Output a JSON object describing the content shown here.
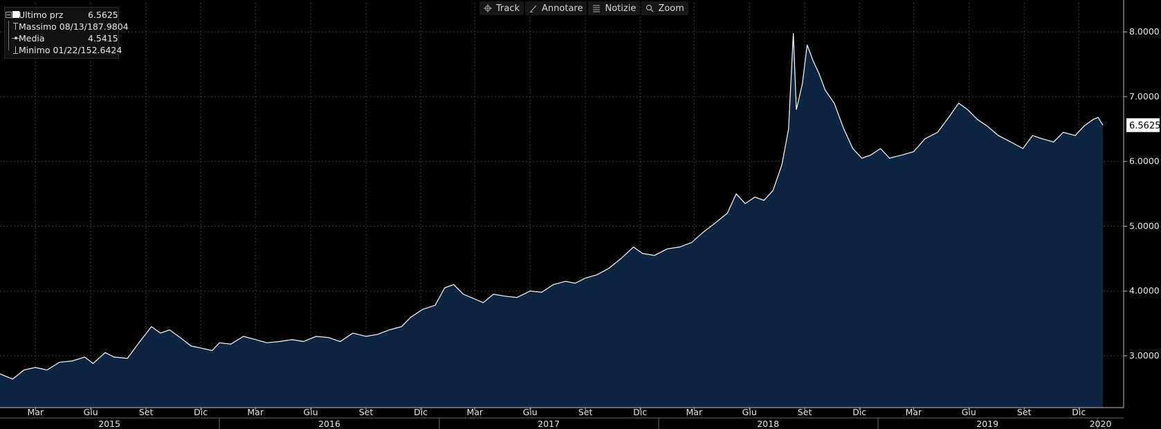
{
  "toolbar": {
    "buttons": [
      {
        "label": "Track",
        "icon": "crosshair-icon"
      },
      {
        "label": "Annotare",
        "icon": "pencil-icon"
      },
      {
        "label": "Notizie",
        "icon": "news-icon"
      },
      {
        "label": "Zoom",
        "icon": "magnifier-icon"
      }
    ]
  },
  "legend": {
    "items": [
      {
        "name": "Ultimo prz",
        "value": "6.5625"
      },
      {
        "name": "Massimo 08/13/18",
        "value": "7.9804"
      },
      {
        "name": "Media",
        "value": "4.5415"
      },
      {
        "name": "Minimo 01/22/15",
        "value": "2.6424"
      }
    ]
  },
  "last_price_tag": "6.5625",
  "colors": {
    "background": "#000000",
    "line": "#ffffff",
    "fill": "#0d2540",
    "grid": "#3c3c3c",
    "tag_bg": "#ffffff"
  },
  "chart_data": {
    "type": "area",
    "title": "",
    "xlabel": "",
    "ylabel": "",
    "x_range": [
      "2015-01-01",
      "2020-01-10"
    ],
    "ylim": [
      2.2,
      8.45
    ],
    "y_ticks": [
      "3.0000",
      "4.0000",
      "5.0000",
      "6.0000",
      "7.0000",
      "8.0000"
    ],
    "y_tick_values": [
      3,
      4,
      5,
      6,
      7,
      8
    ],
    "grid": true,
    "y_axis_side": "right",
    "month_ticks": [
      {
        "label": "Mar",
        "date": "2015-03-01"
      },
      {
        "label": "Giu",
        "date": "2015-06-01"
      },
      {
        "label": "Set",
        "date": "2015-09-01"
      },
      {
        "label": "Dic",
        "date": "2015-12-01"
      },
      {
        "label": "Mar",
        "date": "2016-03-01"
      },
      {
        "label": "Giu",
        "date": "2016-06-01"
      },
      {
        "label": "Set",
        "date": "2016-09-01"
      },
      {
        "label": "Dic",
        "date": "2016-12-01"
      },
      {
        "label": "Mar",
        "date": "2017-03-01"
      },
      {
        "label": "Giu",
        "date": "2017-06-01"
      },
      {
        "label": "Set",
        "date": "2017-09-01"
      },
      {
        "label": "Dic",
        "date": "2017-12-01"
      },
      {
        "label": "Mar",
        "date": "2018-03-01"
      },
      {
        "label": "Giu",
        "date": "2018-06-01"
      },
      {
        "label": "Set",
        "date": "2018-09-01"
      },
      {
        "label": "Dic",
        "date": "2018-12-01"
      },
      {
        "label": "Mar",
        "date": "2019-03-01"
      },
      {
        "label": "Giu",
        "date": "2019-06-01"
      },
      {
        "label": "Set",
        "date": "2019-09-01"
      },
      {
        "label": "Dic",
        "date": "2019-12-01"
      }
    ],
    "year_ticks": [
      {
        "label": "2015",
        "date": "2015-07-02"
      },
      {
        "label": "2016",
        "date": "2016-07-02"
      },
      {
        "label": "2017",
        "date": "2017-07-02"
      },
      {
        "label": "2018",
        "date": "2018-07-02"
      },
      {
        "label": "2019",
        "date": "2019-07-02"
      },
      {
        "label": "2020",
        "date": "2020-01-06"
      }
    ],
    "year_boundaries": [
      "2016-01-01",
      "2017-01-01",
      "2018-01-01",
      "2019-01-01",
      "2020-01-01"
    ],
    "series": [
      {
        "name": "Ultimo prz",
        "points": [
          [
            "2015-01-01",
            2.72
          ],
          [
            "2015-01-22",
            2.64
          ],
          [
            "2015-02-10",
            2.78
          ],
          [
            "2015-03-01",
            2.82
          ],
          [
            "2015-03-20",
            2.78
          ],
          [
            "2015-04-10",
            2.9
          ],
          [
            "2015-05-01",
            2.92
          ],
          [
            "2015-05-22",
            2.98
          ],
          [
            "2015-06-05",
            2.88
          ],
          [
            "2015-06-25",
            3.05
          ],
          [
            "2015-07-10",
            2.98
          ],
          [
            "2015-08-01",
            2.96
          ],
          [
            "2015-08-20",
            3.2
          ],
          [
            "2015-09-10",
            3.45
          ],
          [
            "2015-09-25",
            3.35
          ],
          [
            "2015-10-10",
            3.4
          ],
          [
            "2015-10-28",
            3.28
          ],
          [
            "2015-11-15",
            3.15
          ],
          [
            "2015-12-01",
            3.12
          ],
          [
            "2015-12-20",
            3.08
          ],
          [
            "2016-01-01",
            3.2
          ],
          [
            "2016-01-20",
            3.18
          ],
          [
            "2016-02-10",
            3.3
          ],
          [
            "2016-03-01",
            3.25
          ],
          [
            "2016-03-20",
            3.2
          ],
          [
            "2016-04-10",
            3.22
          ],
          [
            "2016-05-01",
            3.25
          ],
          [
            "2016-05-20",
            3.22
          ],
          [
            "2016-06-10",
            3.3
          ],
          [
            "2016-07-01",
            3.28
          ],
          [
            "2016-07-20",
            3.22
          ],
          [
            "2016-08-10",
            3.35
          ],
          [
            "2016-09-01",
            3.3
          ],
          [
            "2016-09-20",
            3.33
          ],
          [
            "2016-10-10",
            3.4
          ],
          [
            "2016-10-30",
            3.45
          ],
          [
            "2016-11-15",
            3.6
          ],
          [
            "2016-12-05",
            3.72
          ],
          [
            "2016-12-25",
            3.78
          ],
          [
            "2017-01-10",
            4.05
          ],
          [
            "2017-01-25",
            4.1
          ],
          [
            "2017-02-10",
            3.95
          ],
          [
            "2017-02-28",
            3.88
          ],
          [
            "2017-03-15",
            3.82
          ],
          [
            "2017-04-01",
            3.95
          ],
          [
            "2017-04-20",
            3.92
          ],
          [
            "2017-05-10",
            3.9
          ],
          [
            "2017-06-01",
            4.0
          ],
          [
            "2017-06-20",
            3.98
          ],
          [
            "2017-07-10",
            4.1
          ],
          [
            "2017-07-30",
            4.15
          ],
          [
            "2017-08-15",
            4.12
          ],
          [
            "2017-09-01",
            4.2
          ],
          [
            "2017-09-20",
            4.25
          ],
          [
            "2017-10-10",
            4.35
          ],
          [
            "2017-10-30",
            4.5
          ],
          [
            "2017-11-20",
            4.68
          ],
          [
            "2017-12-05",
            4.58
          ],
          [
            "2017-12-25",
            4.55
          ],
          [
            "2018-01-15",
            4.65
          ],
          [
            "2018-02-05",
            4.68
          ],
          [
            "2018-02-25",
            4.75
          ],
          [
            "2018-03-15",
            4.9
          ],
          [
            "2018-04-05",
            5.05
          ],
          [
            "2018-04-25",
            5.2
          ],
          [
            "2018-05-10",
            5.5
          ],
          [
            "2018-05-25",
            5.35
          ],
          [
            "2018-06-10",
            5.45
          ],
          [
            "2018-06-25",
            5.4
          ],
          [
            "2018-07-10",
            5.55
          ],
          [
            "2018-07-25",
            5.95
          ],
          [
            "2018-08-05",
            6.5
          ],
          [
            "2018-08-13",
            7.98
          ],
          [
            "2018-08-18",
            6.8
          ],
          [
            "2018-08-28",
            7.2
          ],
          [
            "2018-09-05",
            7.8
          ],
          [
            "2018-09-15",
            7.55
          ],
          [
            "2018-09-25",
            7.35
          ],
          [
            "2018-10-05",
            7.1
          ],
          [
            "2018-10-20",
            6.9
          ],
          [
            "2018-11-05",
            6.5
          ],
          [
            "2018-11-20",
            6.2
          ],
          [
            "2018-12-05",
            6.05
          ],
          [
            "2018-12-20",
            6.1
          ],
          [
            "2019-01-05",
            6.2
          ],
          [
            "2019-01-20",
            6.05
          ],
          [
            "2019-02-10",
            6.1
          ],
          [
            "2019-03-01",
            6.15
          ],
          [
            "2019-03-20",
            6.35
          ],
          [
            "2019-04-10",
            6.45
          ],
          [
            "2019-04-30",
            6.7
          ],
          [
            "2019-05-15",
            6.9
          ],
          [
            "2019-05-30",
            6.8
          ],
          [
            "2019-06-15",
            6.65
          ],
          [
            "2019-07-01",
            6.55
          ],
          [
            "2019-07-20",
            6.4
          ],
          [
            "2019-08-10",
            6.3
          ],
          [
            "2019-08-30",
            6.2
          ],
          [
            "2019-09-15",
            6.4
          ],
          [
            "2019-10-01",
            6.35
          ],
          [
            "2019-10-20",
            6.3
          ],
          [
            "2019-11-05",
            6.45
          ],
          [
            "2019-11-25",
            6.4
          ],
          [
            "2019-12-10",
            6.55
          ],
          [
            "2019-12-25",
            6.65
          ],
          [
            "2020-01-02",
            6.68
          ],
          [
            "2020-01-10",
            6.56
          ]
        ]
      }
    ]
  }
}
